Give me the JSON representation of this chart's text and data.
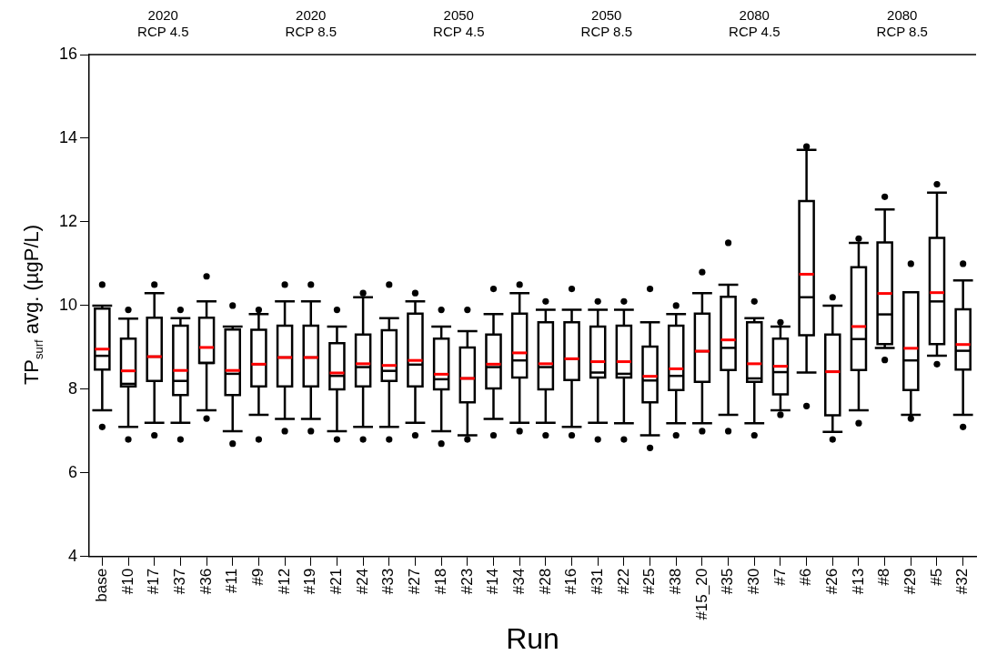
{
  "chart_data": {
    "type": "box",
    "xlabel": "Run",
    "ylabel": "TP$_{surf}$ avg. (µgP/L)",
    "annotations": [
      "2020\nRCP 4.5",
      "2020\nRCP 8.5",
      "2050\nRCP 4.5",
      "2050\nRCP 8.5",
      "2080\nRCP 4.5",
      "2080\nRCP 8.5"
    ],
    "categories": [
      "base",
      "#10",
      "#17",
      "#37",
      "#36",
      "#11",
      "#9",
      "#12",
      "#19",
      "#21",
      "#24",
      "#33",
      "#27",
      "#18",
      "#23",
      "#14",
      "#34",
      "#28",
      "#16",
      "#31",
      "#22",
      "#25",
      "#38",
      "#15_20",
      "#35",
      "#30",
      "#7",
      "#6",
      "#26",
      "#13",
      "#8",
      "#29",
      "#5",
      "#32"
    ],
    "ylim": [
      4,
      16
    ],
    "yticks": [
      4,
      6,
      8,
      10,
      12,
      14,
      16
    ],
    "grid": false,
    "legend": false,
    "series": [
      {
        "color": "#000000",
        "boxes": [
          {
            "low": 7.5,
            "q1": 8.47,
            "median": 8.8,
            "q3": 9.93,
            "high": 10.0,
            "mean": 8.96,
            "outliers": [
              10.5,
              7.1
            ]
          },
          {
            "low": 7.1,
            "q1": 8.07,
            "median": 8.13,
            "q3": 9.21,
            "high": 9.69,
            "mean": 8.44,
            "outliers": [
              9.9,
              6.8
            ]
          },
          {
            "low": 7.2,
            "q1": 8.2,
            "median": 8.78,
            "q3": 9.71,
            "high": 10.3,
            "mean": 8.78,
            "outliers": [
              10.5,
              6.9
            ]
          },
          {
            "low": 7.2,
            "q1": 7.86,
            "median": 8.2,
            "q3": 9.52,
            "high": 9.7,
            "mean": 8.45,
            "outliers": [
              9.9,
              6.8
            ]
          },
          {
            "low": 7.5,
            "q1": 8.63,
            "median": 8.63,
            "q3": 9.71,
            "high": 10.1,
            "mean": 9.0,
            "outliers": [
              10.7,
              7.3
            ]
          },
          {
            "low": 7.0,
            "q1": 7.86,
            "median": 8.37,
            "q3": 9.43,
            "high": 9.5,
            "mean": 8.45,
            "outliers": [
              10.0,
              6.7
            ]
          },
          {
            "low": 7.39,
            "q1": 8.07,
            "median": 8.6,
            "q3": 9.42,
            "high": 9.8,
            "mean": 8.6,
            "outliers": [
              9.9,
              6.8
            ]
          },
          {
            "low": 7.29,
            "q1": 8.07,
            "median": 8.76,
            "q3": 9.52,
            "high": 10.1,
            "mean": 8.76,
            "outliers": [
              10.5,
              7.0
            ]
          },
          {
            "low": 7.29,
            "q1": 8.07,
            "median": 8.76,
            "q3": 9.52,
            "high": 10.1,
            "mean": 8.76,
            "outliers": [
              10.5,
              7.0
            ]
          },
          {
            "low": 7.0,
            "q1": 8.0,
            "median": 8.32,
            "q3": 9.1,
            "high": 9.5,
            "mean": 8.39,
            "outliers": [
              9.9,
              6.8
            ]
          },
          {
            "low": 7.1,
            "q1": 8.07,
            "median": 8.53,
            "q3": 9.31,
            "high": 10.2,
            "mean": 8.61,
            "outliers": [
              10.3,
              6.8
            ]
          },
          {
            "low": 7.1,
            "q1": 8.2,
            "median": 8.44,
            "q3": 9.41,
            "high": 9.7,
            "mean": 8.57,
            "outliers": [
              10.5,
              6.8
            ]
          },
          {
            "low": 7.2,
            "q1": 8.07,
            "median": 8.59,
            "q3": 9.81,
            "high": 10.1,
            "mean": 8.69,
            "outliers": [
              10.3,
              6.9
            ]
          },
          {
            "low": 7.0,
            "q1": 8.0,
            "median": 8.24,
            "q3": 9.21,
            "high": 9.5,
            "mean": 8.36,
            "outliers": [
              9.9,
              6.7
            ]
          },
          {
            "low": 6.9,
            "q1": 7.69,
            "median": 8.26,
            "q3": 9.0,
            "high": 9.39,
            "mean": 8.26,
            "outliers": [
              9.9,
              6.8
            ]
          },
          {
            "low": 7.29,
            "q1": 8.02,
            "median": 8.53,
            "q3": 9.31,
            "high": 9.8,
            "mean": 8.6,
            "outliers": [
              10.4,
              6.9
            ]
          },
          {
            "low": 7.2,
            "q1": 8.28,
            "median": 8.69,
            "q3": 9.81,
            "high": 10.3,
            "mean": 8.87,
            "outliers": [
              10.5,
              7.0
            ]
          },
          {
            "low": 7.2,
            "q1": 8.0,
            "median": 8.53,
            "q3": 9.6,
            "high": 9.9,
            "mean": 8.61,
            "outliers": [
              10.1,
              6.9
            ]
          },
          {
            "low": 7.1,
            "q1": 8.22,
            "median": 8.73,
            "q3": 9.6,
            "high": 9.9,
            "mean": 8.73,
            "outliers": [
              10.4,
              6.9
            ]
          },
          {
            "low": 7.2,
            "q1": 8.28,
            "median": 8.4,
            "q3": 9.5,
            "high": 9.9,
            "mean": 8.66,
            "outliers": [
              10.1,
              6.8
            ]
          },
          {
            "low": 7.19,
            "q1": 8.28,
            "median": 8.37,
            "q3": 9.52,
            "high": 9.9,
            "mean": 8.66,
            "outliers": [
              10.1,
              6.8
            ]
          },
          {
            "low": 6.9,
            "q1": 7.69,
            "median": 8.21,
            "q3": 9.02,
            "high": 9.6,
            "mean": 8.31,
            "outliers": [
              10.4,
              6.6
            ]
          },
          {
            "low": 7.19,
            "q1": 7.98,
            "median": 8.32,
            "q3": 9.52,
            "high": 9.8,
            "mean": 8.49,
            "outliers": [
              10.0,
              6.9
            ]
          },
          {
            "low": 7.19,
            "q1": 8.18,
            "median": 8.91,
            "q3": 9.81,
            "high": 10.3,
            "mean": 8.91,
            "outliers": [
              10.8,
              7.0
            ]
          },
          {
            "low": 7.39,
            "q1": 8.46,
            "median": 8.99,
            "q3": 10.21,
            "high": 10.5,
            "mean": 9.18,
            "outliers": [
              11.5,
              7.0
            ]
          },
          {
            "low": 7.19,
            "q1": 8.18,
            "median": 8.26,
            "q3": 9.6,
            "high": 9.7,
            "mean": 8.61,
            "outliers": [
              10.1,
              6.9
            ]
          },
          {
            "low": 7.5,
            "q1": 7.88,
            "median": 8.41,
            "q3": 9.21,
            "high": 9.5,
            "mean": 8.55,
            "outliers": [
              9.6,
              7.39
            ]
          },
          {
            "low": 8.4,
            "q1": 9.29,
            "median": 10.2,
            "q3": 12.5,
            "high": 13.72,
            "mean": 10.75,
            "outliers": [
              13.8,
              7.6
            ]
          },
          {
            "low": 6.98,
            "q1": 7.38,
            "median": 8.42,
            "q3": 9.31,
            "high": 10.0,
            "mean": 8.42,
            "outliers": [
              10.2,
              6.8
            ]
          },
          {
            "low": 7.5,
            "q1": 8.46,
            "median": 9.2,
            "q3": 10.92,
            "high": 11.5,
            "mean": 9.5,
            "outliers": [
              11.6,
              7.19
            ]
          },
          {
            "low": 8.99,
            "q1": 9.08,
            "median": 9.79,
            "q3": 11.51,
            "high": 12.3,
            "mean": 10.29,
            "outliers": [
              12.6,
              8.7
            ]
          },
          {
            "low": 7.39,
            "q1": 7.98,
            "median": 8.69,
            "q3": 10.32,
            "high": 10.32,
            "mean": 8.98,
            "outliers": [
              11.0,
              7.3
            ]
          },
          {
            "low": 8.8,
            "q1": 9.08,
            "median": 10.1,
            "q3": 11.62,
            "high": 12.7,
            "mean": 10.31,
            "outliers": [
              12.9,
              8.6
            ]
          },
          {
            "low": 7.39,
            "q1": 8.47,
            "median": 8.92,
            "q3": 9.91,
            "high": 10.6,
            "mean": 9.07,
            "outliers": [
              11.0,
              7.1
            ]
          }
        ]
      }
    ]
  }
}
